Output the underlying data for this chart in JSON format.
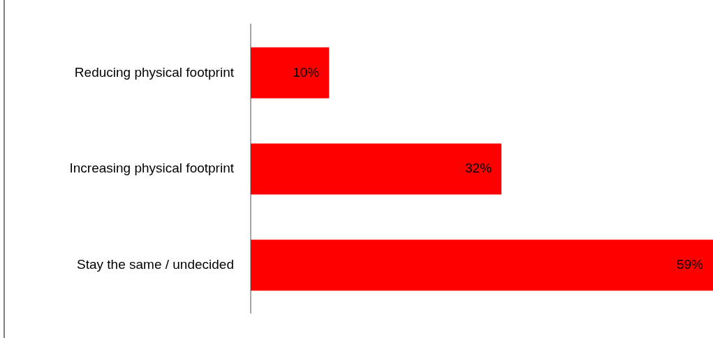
{
  "chart_data": {
    "type": "bar",
    "orientation": "horizontal",
    "categories": [
      "Reducing physical footprint",
      "Increasing physical footprint",
      "Stay the same / undecided"
    ],
    "values": [
      10,
      32,
      59
    ],
    "color": "#ff0000",
    "value_labels": [
      "10%",
      "32%",
      "59%"
    ],
    "legend": false
  }
}
